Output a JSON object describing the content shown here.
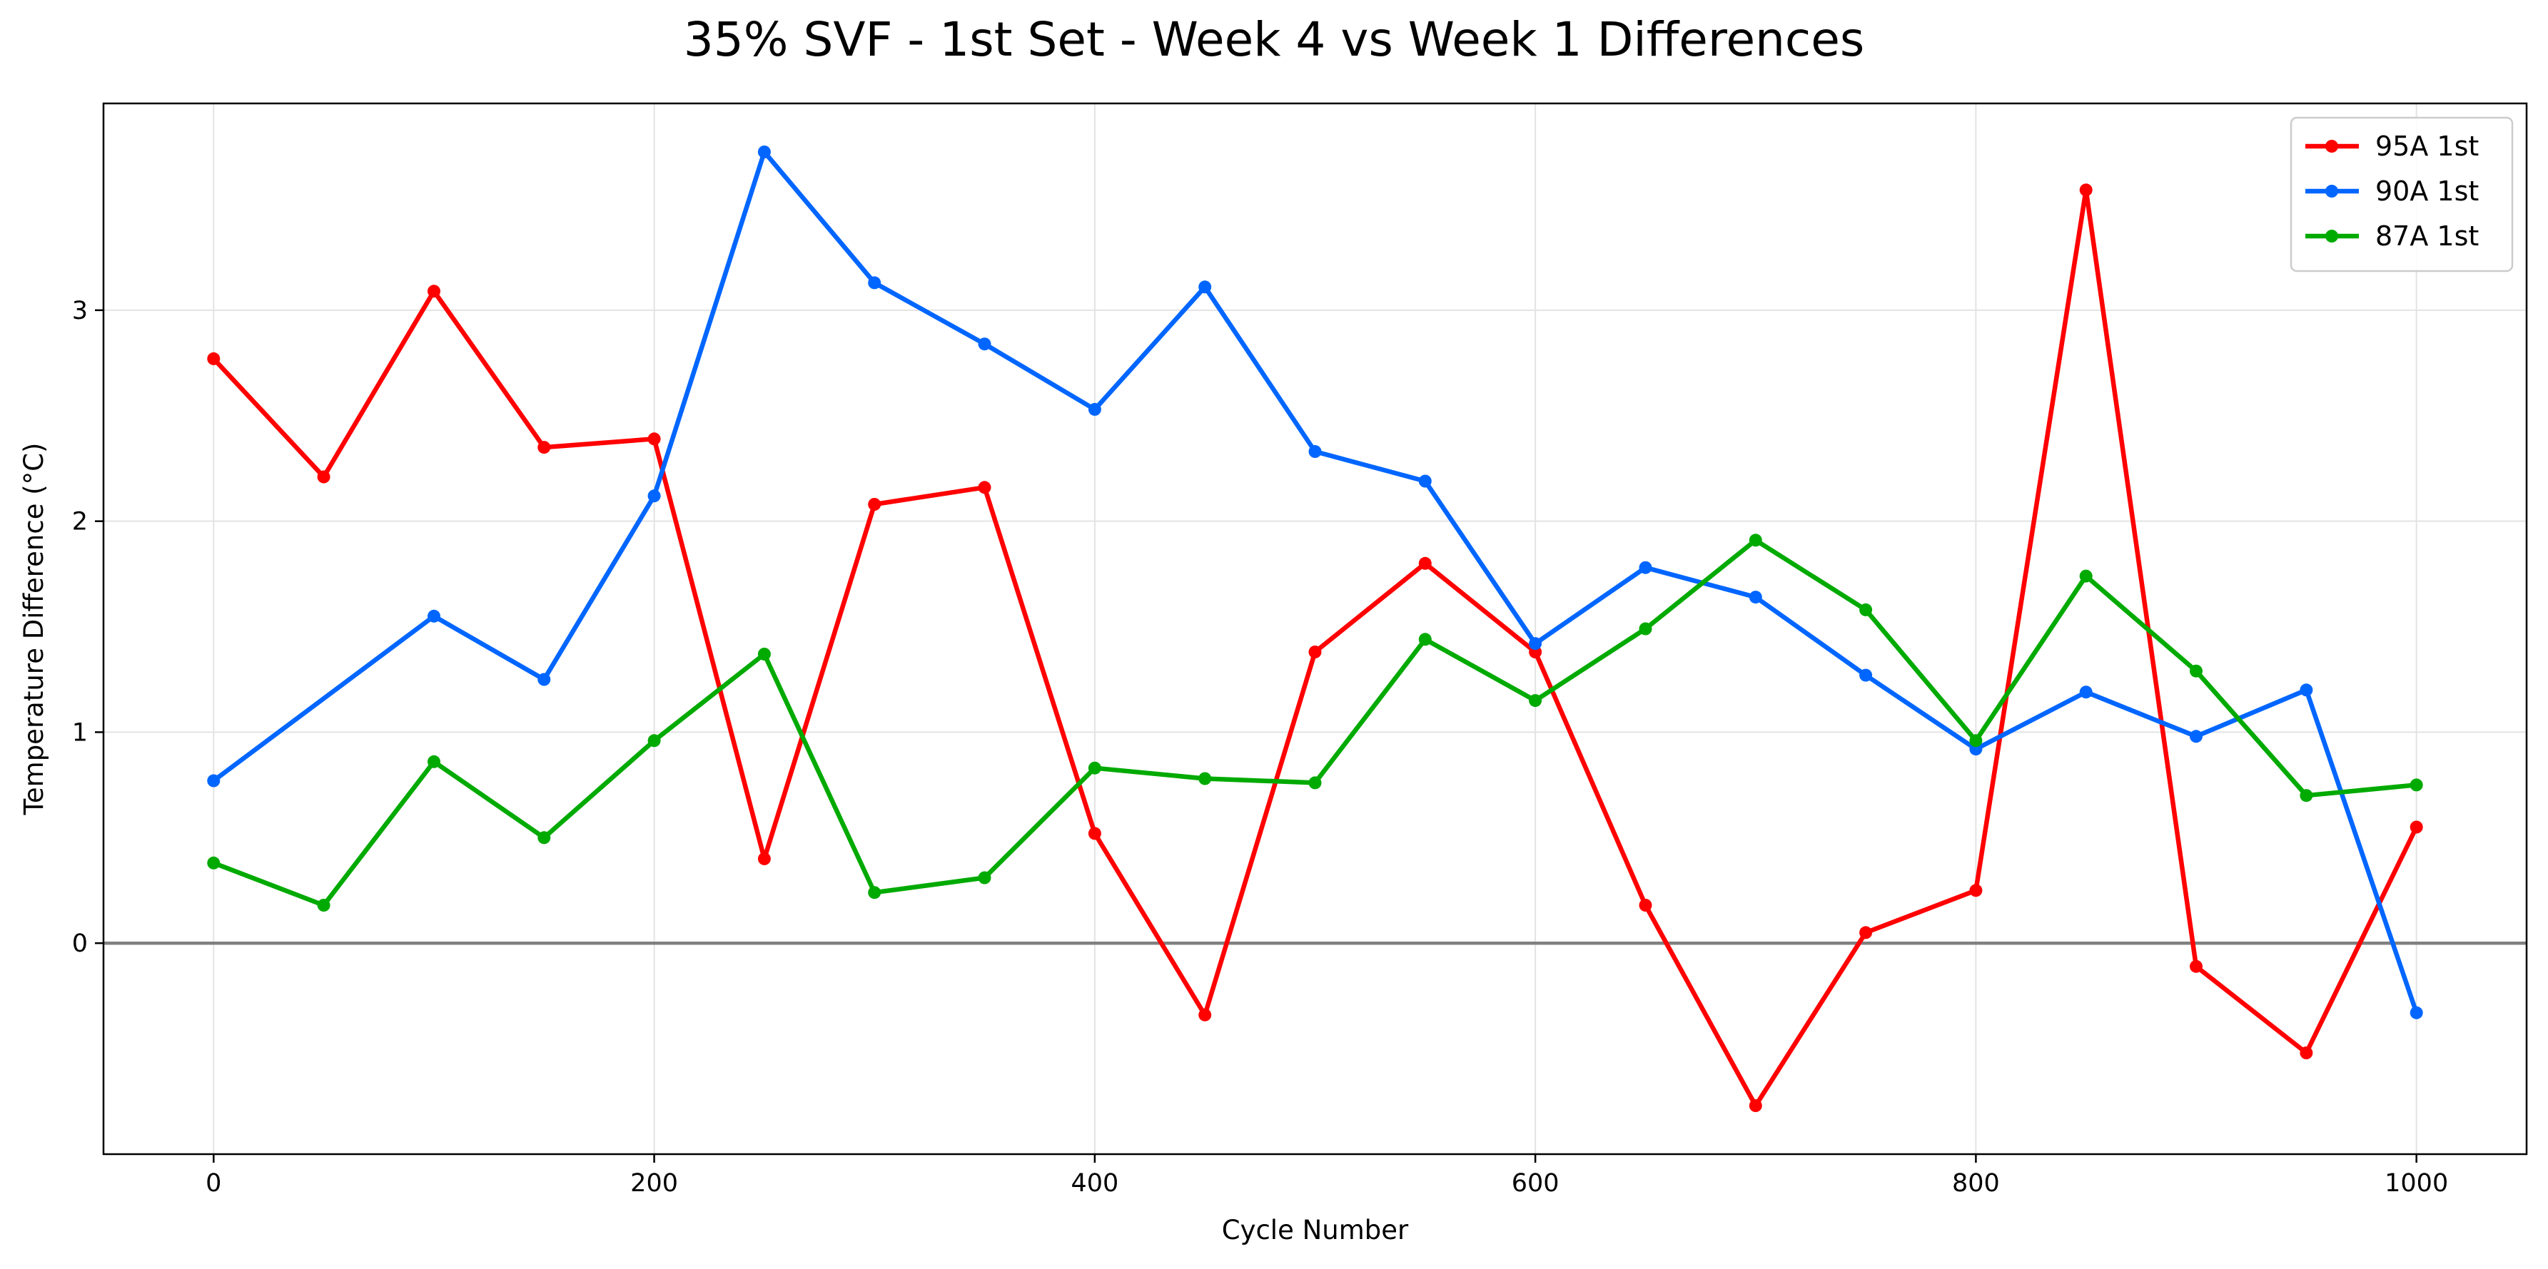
{
  "chart_data": {
    "type": "line",
    "title": "35% SVF - 1st Set - Week 4 vs Week 1 Differences",
    "xlabel": "Cycle Number",
    "ylabel": "Temperature Difference (°C)",
    "xlim": [
      -50,
      1050
    ],
    "ylim": [
      -1.0,
      3.98
    ],
    "xticks": [
      0,
      200,
      400,
      600,
      800,
      1000
    ],
    "yticks": [
      0,
      1,
      2,
      3
    ],
    "grid": true,
    "reference_line": {
      "y": 0,
      "color": "#808080"
    },
    "legend_position": "top-right",
    "x": [
      0,
      50,
      100,
      150,
      200,
      250,
      300,
      350,
      400,
      450,
      500,
      550,
      600,
      650,
      700,
      750,
      800,
      850,
      900,
      950,
      1000
    ],
    "series": [
      {
        "name": "95A 1st",
        "color": "#ff0000",
        "values": [
          2.77,
          2.21,
          3.09,
          2.35,
          2.39,
          0.4,
          2.08,
          2.16,
          0.52,
          -0.34,
          1.38,
          1.8,
          1.38,
          0.18,
          -0.77,
          0.05,
          0.25,
          3.57,
          -0.11,
          -0.52,
          0.55
        ]
      },
      {
        "name": "90A 1st",
        "color": "#0066ff",
        "values": [
          0.77,
          null,
          1.55,
          1.25,
          2.12,
          3.75,
          3.13,
          2.84,
          2.53,
          3.11,
          2.33,
          2.19,
          1.42,
          1.78,
          1.64,
          1.27,
          0.92,
          1.19,
          0.98,
          1.2,
          -0.33
        ]
      },
      {
        "name": "87A 1st",
        "color": "#00aa00",
        "values": [
          0.38,
          0.18,
          0.86,
          0.5,
          0.96,
          1.37,
          0.24,
          0.31,
          0.83,
          0.78,
          0.76,
          1.44,
          1.15,
          1.49,
          1.91,
          1.58,
          0.96,
          1.74,
          1.29,
          0.7,
          0.75
        ]
      }
    ]
  }
}
